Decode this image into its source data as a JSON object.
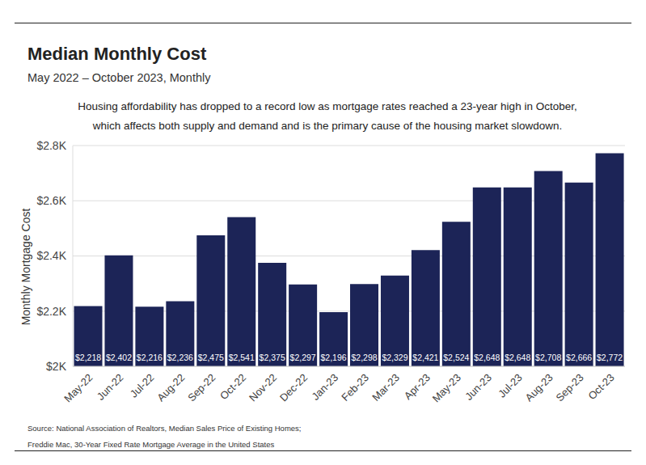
{
  "chart_data": {
    "type": "bar",
    "title": "Median Monthly Cost",
    "subtitle": "May 2022 – October 2023, Monthly",
    "annotation": "Housing affordability has dropped to a record low as mortgage rates reached a 23-year high in October, which affects both supply and demand and is the primary cause of the housing market slowdown.",
    "y_label": "Monthly Mortgage Cost",
    "source": [
      "Source: National Association of Realtors, Median Sales Price of Existing Homes;",
      "Freddie Mac, 30-Year Fixed Rate Mortgage Average in the United States"
    ],
    "categories": [
      "May-22",
      "Jun-22",
      "Jul-22",
      "Aug-22",
      "Sep-22",
      "Oct-22",
      "Nov-22",
      "Dec-22",
      "Jan-23",
      "Feb-23",
      "Mar-23",
      "Apr-23",
      "May-23",
      "Jun-23",
      "Jul-23",
      "Aug-23",
      "Sep-23",
      "Oct-23"
    ],
    "values": [
      2218,
      2402,
      2216,
      2236,
      2475,
      2541,
      2375,
      2297,
      2196,
      2298,
      2329,
      2421,
      2524,
      2648,
      2648,
      2708,
      2666,
      2772
    ],
    "value_labels": [
      "$2,218",
      "$2,402",
      "$2,216",
      "$2,236",
      "$2,475",
      "$2,541",
      "$2,375",
      "$2,297",
      "$2,196",
      "$2,298",
      "$2,329",
      "$2,421",
      "$2,524",
      "$2,648",
      "$2,648",
      "$2,708",
      "$2,666",
      "$2,772"
    ],
    "color": "#1c2457",
    "ylim": [
      2000,
      2800
    ],
    "yticks": [
      {
        "value": 2000,
        "label": "$2K"
      },
      {
        "value": 2200,
        "label": "$2.2K"
      },
      {
        "value": 2400,
        "label": "$2.4K"
      },
      {
        "value": 2600,
        "label": "$2.6K"
      },
      {
        "value": 2800,
        "label": "$2.8K"
      }
    ],
    "grid": true,
    "data_labels": true
  }
}
